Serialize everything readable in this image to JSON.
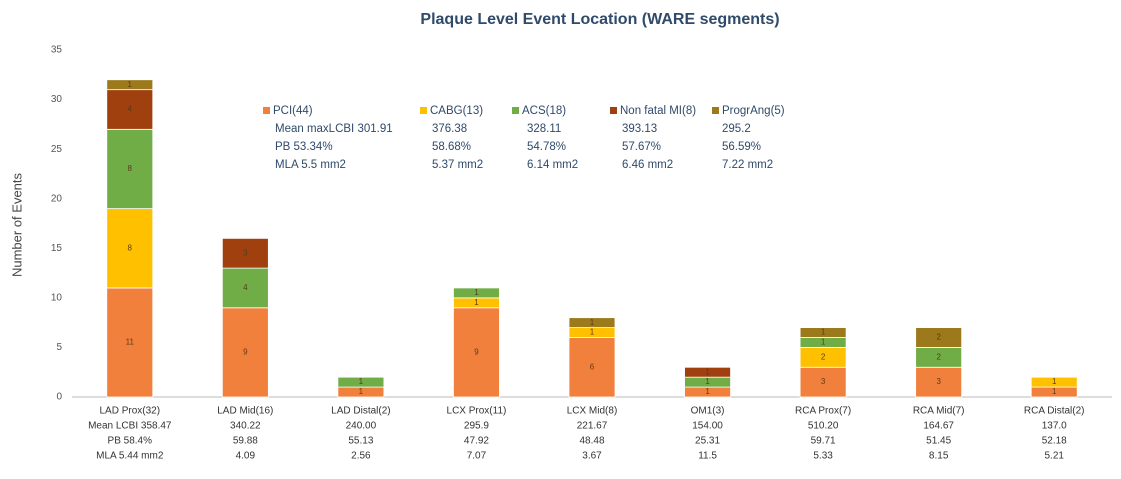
{
  "chart_data": {
    "type": "stacked_bar",
    "title": "Plaque Level Event Location (WARE segments)",
    "y_label": "Number of Events",
    "categories": [
      "LAD Prox(32)",
      "LAD Mid(16)",
      "LAD Distal(2)",
      "LCX Prox(11)",
      "LCX Mid(8)",
      "OM1(3)",
      "RCA Prox(7)",
      "RCA Mid(7)",
      "RCA Distal(2)"
    ],
    "series": [
      {
        "name": "PCI(44)",
        "color": "#f0803c",
        "values": [
          11,
          9,
          1,
          9,
          6,
          1,
          3,
          3,
          1
        ]
      },
      {
        "name": "CABG(13)",
        "color": "#ffc000",
        "values": [
          8,
          0,
          0,
          1,
          1,
          0,
          2,
          0,
          1
        ]
      },
      {
        "name": "ACS(18)",
        "color": "#70ad47",
        "values": [
          8,
          4,
          1,
          1,
          0,
          1,
          1,
          2,
          0
        ]
      },
      {
        "name": "Non fatal MI(8)",
        "color": "#a0400f",
        "values": [
          4,
          3,
          0,
          0,
          0,
          1,
          0,
          0,
          0
        ]
      },
      {
        "name": "ProgrAng(5)",
        "color": "#9c7a1c",
        "values": [
          1,
          0,
          0,
          0,
          1,
          0,
          1,
          2,
          0
        ]
      }
    ],
    "legend_details": [
      [
        "Mean maxLCBI 301.91",
        "376.38",
        "328.11",
        "393.13",
        "295.2"
      ],
      [
        "PB 53.34%",
        "58.68%",
        "54.78%",
        "57.67%",
        "56.59%"
      ],
      [
        "MLA 5.5 mm2",
        "5.37 mm2",
        "6.14 mm2",
        "6.46 mm2",
        "7.22 mm2"
      ]
    ],
    "category_details": [
      [
        "Mean LCBI 358.47",
        "340.22",
        "240.00",
        "295.9",
        "221.67",
        "154.00",
        "510.20",
        "164.67",
        "137.0"
      ],
      [
        "PB 58.4%",
        "59.88",
        "55.13",
        "47.92",
        "48.48",
        "25.31",
        "59.71",
        "51.45",
        "52.18"
      ],
      [
        "MLA 5.44 mm2",
        "4.09",
        "2.56",
        "7.07",
        "3.67",
        "11.5",
        "5.33",
        "8.15",
        "5.21"
      ]
    ],
    "ylim": [
      0,
      35
    ],
    "yticks": [
      0,
      5,
      10,
      15,
      20,
      25,
      30,
      35
    ],
    "grid": false
  }
}
